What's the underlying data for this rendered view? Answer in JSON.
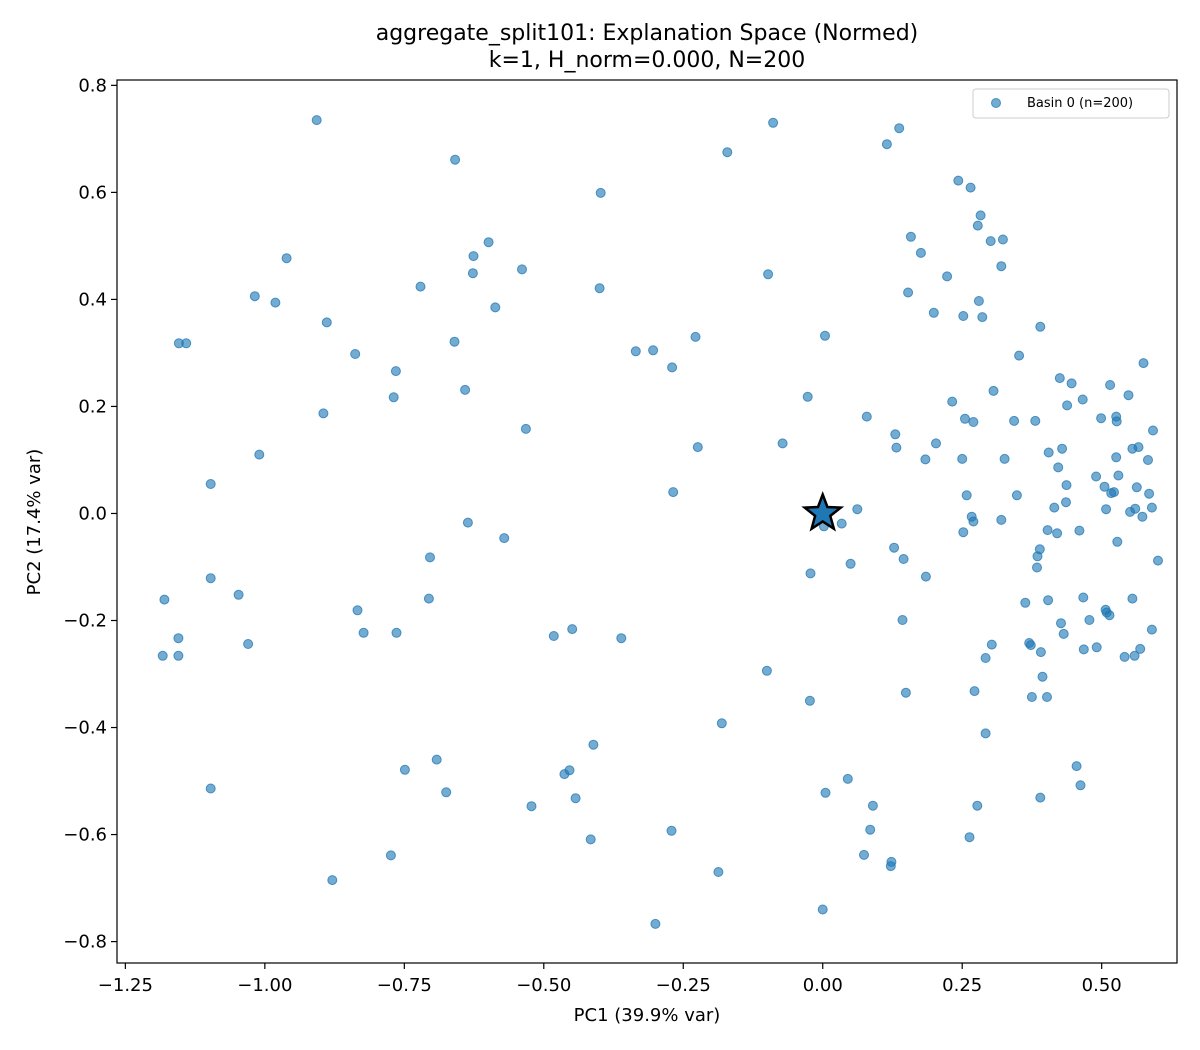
{
  "chart_data": {
    "type": "scatter",
    "title_line1": "aggregate_split101: Explanation Space (Normed)",
    "title_line2": "k=1, H_norm=0.000, N=200",
    "xlabel": "PC1 (39.9% var)",
    "ylabel": "PC2 (17.4% var)",
    "xlim": [
      -1.265,
      0.635
    ],
    "ylim": [
      -0.84,
      0.81
    ],
    "x_ticks": [
      -1.25,
      -1.0,
      -0.75,
      -0.5,
      -0.25,
      0.0,
      0.25,
      0.5
    ],
    "x_tick_labels": [
      "−1.25",
      "−1.00",
      "−0.75",
      "−0.50",
      "−0.25",
      "0.00",
      "0.25",
      "0.50"
    ],
    "y_ticks": [
      -0.8,
      -0.6,
      -0.4,
      -0.2,
      0.0,
      0.2,
      0.4,
      0.6,
      0.8
    ],
    "y_tick_labels": [
      "−0.8",
      "−0.6",
      "−0.4",
      "−0.2",
      "0.0",
      "0.2",
      "0.4",
      "0.6",
      "0.8"
    ],
    "grid": false,
    "legend_position": "top-right",
    "colors": {
      "point": "#1f77b4",
      "centroid": "#1f77b4",
      "centroid_edge": "#000000"
    },
    "centroid": {
      "x": 0.0,
      "y": 0.0,
      "marker": "star"
    },
    "series": [
      {
        "name": "Basin 0 (n=200)",
        "points": [
          [
            -0.907,
            0.735
          ],
          [
            -0.659,
            0.661
          ],
          [
            -0.171,
            0.675
          ],
          [
            -0.089,
            0.73
          ],
          [
            0.115,
            0.69
          ],
          [
            0.137,
            0.72
          ],
          [
            0.243,
            0.622
          ],
          [
            0.265,
            0.609
          ],
          [
            0.278,
            0.538
          ],
          [
            0.283,
            0.557
          ],
          [
            0.301,
            0.509
          ],
          [
            0.323,
            0.512
          ],
          [
            0.158,
            0.517
          ],
          [
            0.176,
            0.487
          ],
          [
            -0.398,
            0.599
          ],
          [
            -0.599,
            0.507
          ],
          [
            -0.626,
            0.481
          ],
          [
            -0.627,
            0.449
          ],
          [
            -0.539,
            0.456
          ],
          [
            -0.4,
            0.421
          ],
          [
            -0.098,
            0.447
          ],
          [
            -0.961,
            0.477
          ],
          [
            -1.018,
            0.406
          ],
          [
            -0.981,
            0.394
          ],
          [
            -0.889,
            0.357
          ],
          [
            -0.721,
            0.424
          ],
          [
            -0.587,
            0.385
          ],
          [
            -0.66,
            0.321
          ],
          [
            -1.154,
            0.318
          ],
          [
            -1.141,
            0.318
          ],
          [
            -0.838,
            0.298
          ],
          [
            -0.765,
            0.266
          ],
          [
            -0.769,
            0.217
          ],
          [
            -0.641,
            0.231
          ],
          [
            -0.895,
            0.187
          ],
          [
            -0.335,
            0.303
          ],
          [
            -0.304,
            0.305
          ],
          [
            -0.27,
            0.273
          ],
          [
            -0.228,
            0.33
          ],
          [
            0.004,
            0.332
          ],
          [
            0.153,
            0.413
          ],
          [
            0.223,
            0.443
          ],
          [
            0.32,
            0.462
          ],
          [
            0.28,
            0.397
          ],
          [
            0.199,
            0.375
          ],
          [
            0.252,
            0.369
          ],
          [
            0.286,
            0.367
          ],
          [
            0.39,
            0.349
          ],
          [
            0.352,
            0.295
          ],
          [
            0.425,
            0.253
          ],
          [
            0.446,
            0.243
          ],
          [
            0.515,
            0.24
          ],
          [
            0.575,
            0.281
          ],
          [
            0.306,
            0.229
          ],
          [
            0.232,
            0.209
          ],
          [
            -0.532,
            0.158
          ],
          [
            -1.01,
            0.11
          ],
          [
            -0.224,
            0.124
          ],
          [
            -0.072,
            0.131
          ],
          [
            -0.027,
            0.218
          ],
          [
            0.079,
            0.181
          ],
          [
            0.13,
            0.148
          ],
          [
            0.132,
            0.123
          ],
          [
            0.203,
            0.131
          ],
          [
            0.184,
            0.101
          ],
          [
            0.255,
            0.177
          ],
          [
            0.27,
            0.171
          ],
          [
            0.343,
            0.173
          ],
          [
            0.381,
            0.173
          ],
          [
            0.438,
            0.202
          ],
          [
            0.466,
            0.213
          ],
          [
            0.499,
            0.178
          ],
          [
            0.526,
            0.181
          ],
          [
            0.527,
            0.172
          ],
          [
            0.548,
            0.221
          ],
          [
            0.592,
            0.155
          ],
          [
            0.566,
            0.124
          ],
          [
            0.555,
            0.121
          ],
          [
            0.526,
            0.105
          ],
          [
            0.583,
            0.1
          ],
          [
            0.405,
            0.114
          ],
          [
            0.429,
            0.121
          ],
          [
            0.422,
            0.086
          ],
          [
            0.326,
            0.102
          ],
          [
            0.25,
            0.102
          ],
          [
            0.49,
            0.069
          ],
          [
            0.53,
            0.071
          ],
          [
            0.437,
            0.053
          ],
          [
            0.505,
            0.05
          ],
          [
            0.563,
            0.049
          ],
          [
            0.517,
            0.038
          ],
          [
            0.522,
            0.04
          ],
          [
            0.585,
            0.037
          ],
          [
            0.348,
            0.034
          ],
          [
            0.258,
            0.034
          ],
          [
            0.415,
            0.011
          ],
          [
            0.436,
            0.021
          ],
          [
            0.508,
            0.008
          ],
          [
            0.551,
            0.003
          ],
          [
            0.56,
            0.009
          ],
          [
            0.573,
            -0.006
          ],
          [
            0.59,
            0.011
          ],
          [
            -1.097,
            0.055
          ],
          [
            -0.268,
            0.04
          ],
          [
            0.062,
            0.008
          ],
          [
            0.034,
            -0.019
          ],
          [
            0.002,
            -0.024
          ],
          [
            0.267,
            -0.006
          ],
          [
            0.27,
            -0.015
          ],
          [
            0.32,
            -0.012
          ],
          [
            0.403,
            -0.031
          ],
          [
            0.42,
            -0.037
          ],
          [
            0.46,
            -0.032
          ],
          [
            0.528,
            -0.053
          ],
          [
            0.252,
            -0.035
          ],
          [
            0.389,
            -0.067
          ],
          [
            0.385,
            -0.08
          ],
          [
            0.384,
            -0.101
          ],
          [
            0.601,
            -0.088
          ],
          [
            -0.636,
            -0.017
          ],
          [
            -0.571,
            -0.046
          ],
          [
            -0.704,
            -0.082
          ],
          [
            -0.706,
            -0.159
          ],
          [
            -1.097,
            -0.121
          ],
          [
            -1.047,
            -0.152
          ],
          [
            -1.18,
            -0.161
          ],
          [
            -1.155,
            -0.233
          ],
          [
            -1.183,
            -0.266
          ],
          [
            -1.155,
            -0.266
          ],
          [
            -1.03,
            -0.244
          ],
          [
            -0.834,
            -0.181
          ],
          [
            -0.823,
            -0.223
          ],
          [
            -0.764,
            -0.223
          ],
          [
            -0.482,
            -0.229
          ],
          [
            -0.449,
            -0.216
          ],
          [
            -0.361,
            -0.233
          ],
          [
            -0.022,
            -0.112
          ],
          [
            0.05,
            -0.094
          ],
          [
            0.128,
            -0.064
          ],
          [
            0.145,
            -0.085
          ],
          [
            0.185,
            -0.118
          ],
          [
            0.143,
            -0.199
          ],
          [
            0.363,
            -0.167
          ],
          [
            0.404,
            -0.162
          ],
          [
            0.427,
            -0.205
          ],
          [
            0.432,
            -0.225
          ],
          [
            0.467,
            -0.157
          ],
          [
            0.478,
            -0.199
          ],
          [
            0.507,
            -0.18
          ],
          [
            0.509,
            -0.185
          ],
          [
            0.514,
            -0.19
          ],
          [
            0.555,
            -0.159
          ],
          [
            0.59,
            -0.217
          ],
          [
            0.303,
            -0.245
          ],
          [
            0.292,
            -0.27
          ],
          [
            0.37,
            -0.242
          ],
          [
            0.373,
            -0.246
          ],
          [
            0.391,
            -0.259
          ],
          [
            0.468,
            -0.254
          ],
          [
            0.491,
            -0.25
          ],
          [
            0.541,
            -0.268
          ],
          [
            0.559,
            -0.266
          ],
          [
            0.569,
            -0.253
          ],
          [
            0.394,
            -0.305
          ],
          [
            0.375,
            -0.343
          ],
          [
            0.402,
            -0.343
          ],
          [
            0.272,
            -0.332
          ],
          [
            0.292,
            -0.411
          ],
          [
            0.149,
            -0.335
          ],
          [
            -0.1,
            -0.294
          ],
          [
            -0.023,
            -0.35
          ],
          [
            -0.181,
            -0.392
          ],
          [
            -0.411,
            -0.432
          ],
          [
            -0.692,
            -0.46
          ],
          [
            -0.749,
            -0.479
          ],
          [
            -0.675,
            -0.521
          ],
          [
            -0.454,
            -0.48
          ],
          [
            -0.463,
            -0.487
          ],
          [
            -0.443,
            -0.532
          ],
          [
            -0.522,
            -0.547
          ],
          [
            -0.416,
            -0.609
          ],
          [
            -0.271,
            -0.593
          ],
          [
            -1.097,
            -0.514
          ],
          [
            -0.774,
            -0.639
          ],
          [
            -0.879,
            -0.685
          ],
          [
            -0.187,
            -0.67
          ],
          [
            -0.3,
            -0.767
          ],
          [
            0.045,
            -0.496
          ],
          [
            0.005,
            -0.522
          ],
          [
            0.09,
            -0.546
          ],
          [
            0.085,
            -0.591
          ],
          [
            0.074,
            -0.638
          ],
          [
            0.123,
            -0.651
          ],
          [
            0.122,
            -0.659
          ],
          [
            0.277,
            -0.546
          ],
          [
            0.263,
            -0.605
          ],
          [
            0.39,
            -0.531
          ],
          [
            0.455,
            -0.472
          ],
          [
            0.462,
            -0.508
          ],
          [
            0.0,
            -0.74
          ]
        ]
      }
    ]
  }
}
